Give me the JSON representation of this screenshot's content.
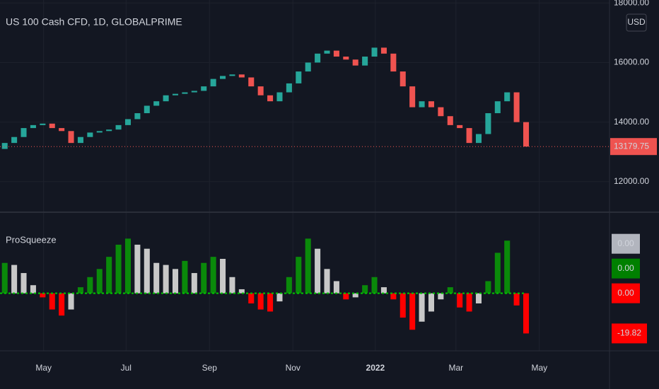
{
  "chart_data": [
    {
      "type": "candlestick",
      "title": "US 100 Cash CFD, 1D, GLOBALPRIME",
      "currency": "USD",
      "x": [
        0.5,
        1.5,
        2.5,
        3.5,
        4.5,
        5.5,
        6.5,
        7.5,
        8.5,
        9.5,
        10.5,
        11.5,
        12.5,
        13.5,
        14.5,
        15.5,
        16.5,
        17.5,
        18.5,
        19.5,
        20.5,
        21.5,
        22.5,
        23.5,
        24.5,
        25.5,
        26.5,
        27.5,
        28.5,
        29.5,
        30.5,
        31.5,
        32.5,
        33.5,
        34.5,
        35.5,
        36.5,
        37.5,
        38.5,
        39.5,
        40.5,
        41.5,
        42.5,
        43.5,
        44.5,
        45.5,
        46.5,
        47.5,
        48.5,
        49.5,
        50.5,
        51.5,
        52.5,
        53.5,
        54.5,
        55.5
      ],
      "open": [
        13100,
        13300,
        13500,
        13800,
        13900,
        13950,
        13800,
        13700,
        13300,
        13500,
        13650,
        13700,
        13750,
        13900,
        14100,
        14300,
        14550,
        14700,
        14900,
        14950,
        15000,
        15050,
        15200,
        15450,
        15550,
        15600,
        15500,
        15200,
        14900,
        14700,
        15000,
        15300,
        15700,
        16000,
        16300,
        16400,
        16200,
        16100,
        15900,
        16200,
        16500,
        16300,
        15700,
        15200,
        14500,
        14700,
        14500,
        14200,
        13900,
        13800,
        13300,
        13600,
        14300,
        14700,
        15000,
        14000
      ],
      "close": [
        13300,
        13500,
        13800,
        13900,
        13950,
        13800,
        13700,
        13300,
        13500,
        13650,
        13700,
        13750,
        13900,
        14100,
        14300,
        14550,
        14700,
        14900,
        14950,
        15000,
        15050,
        15200,
        15450,
        15550,
        15600,
        15500,
        15200,
        14900,
        14700,
        15000,
        15300,
        15700,
        16000,
        16300,
        16400,
        16200,
        16100,
        15900,
        16200,
        16500,
        16300,
        15700,
        15200,
        14500,
        14700,
        14500,
        14200,
        13900,
        13800,
        13300,
        13600,
        14300,
        14700,
        15000,
        14000,
        13179.75
      ],
      "up_color": "#26a69a",
      "down_color": "#ef5350",
      "xlim": [
        0,
        64.3
      ],
      "xticks": [
        {
          "value": 4.6,
          "label": "May"
        },
        {
          "value": 13.3,
          "label": "Jul"
        },
        {
          "value": 22.1,
          "label": "Sep"
        },
        {
          "value": 30.9,
          "label": "Nov"
        },
        {
          "value": 39.6,
          "label": "2022"
        },
        {
          "value": 48.1,
          "label": "Mar"
        },
        {
          "value": 56.9,
          "label": "May"
        }
      ],
      "ylim": [
        11000,
        18100
      ],
      "yticks": [
        {
          "value": 12000,
          "label": "12000.00"
        },
        {
          "value": 14000,
          "label": "14000.00"
        },
        {
          "value": 16000,
          "label": "16000.00"
        },
        {
          "value": 18000,
          "label": "18000.00"
        }
      ],
      "grid": true
    },
    {
      "type": "histogram-bars",
      "title": "ProSqueeze",
      "values": [
        15,
        14,
        10,
        4,
        -2,
        -8,
        -11,
        -8,
        3,
        8,
        12,
        18,
        24,
        27,
        24,
        22,
        15,
        14,
        12,
        16,
        10,
        15,
        18,
        17,
        8,
        2,
        -5,
        -8,
        -9,
        -4,
        8,
        18,
        27,
        22,
        12,
        6,
        -3,
        -2,
        4,
        8,
        3,
        -3,
        -12,
        -18,
        -14,
        -9,
        -3,
        3,
        -7,
        -9,
        -5,
        6,
        20,
        26,
        -6,
        -19.82
      ],
      "colors": [
        "#0a8a0a",
        "#c8c8c8",
        "#c8c8c8",
        "#c8c8c8",
        "#ff0000",
        "#ff0000",
        "#ff0000",
        "#c8c8c8",
        "#0a8a0a",
        "#0a8a0a",
        "#0a8a0a",
        "#0a8a0a",
        "#0a8a0a",
        "#0a8a0a",
        "#c8c8c8",
        "#c8c8c8",
        "#c8c8c8",
        "#c8c8c8",
        "#c8c8c8",
        "#0a8a0a",
        "#c8c8c8",
        "#0a8a0a",
        "#0a8a0a",
        "#c8c8c8",
        "#c8c8c8",
        "#c8c8c8",
        "#ff0000",
        "#ff0000",
        "#ff0000",
        "#c8c8c8",
        "#0a8a0a",
        "#0a8a0a",
        "#0a8a0a",
        "#c8c8c8",
        "#c8c8c8",
        "#c8c8c8",
        "#ff0000",
        "#c8c8c8",
        "#0a8a0a",
        "#0a8a0a",
        "#c8c8c8",
        "#ff0000",
        "#ff0000",
        "#ff0000",
        "#c8c8c8",
        "#c8c8c8",
        "#c8c8c8",
        "#0a8a0a",
        "#ff0000",
        "#ff0000",
        "#c8c8c8",
        "#0a8a0a",
        "#0a8a0a",
        "#0a8a0a",
        "#ff0000",
        "#ff0000"
      ],
      "last_values": [
        {
          "value": 0,
          "label": "0.00",
          "color": "#b2b5be"
        },
        {
          "value": 0,
          "label": "0.00",
          "color": "#008000"
        },
        {
          "value": 0,
          "label": "0.00",
          "color": "#ff0000"
        }
      ],
      "ylim": [
        -27,
        39
      ]
    }
  ]
}
